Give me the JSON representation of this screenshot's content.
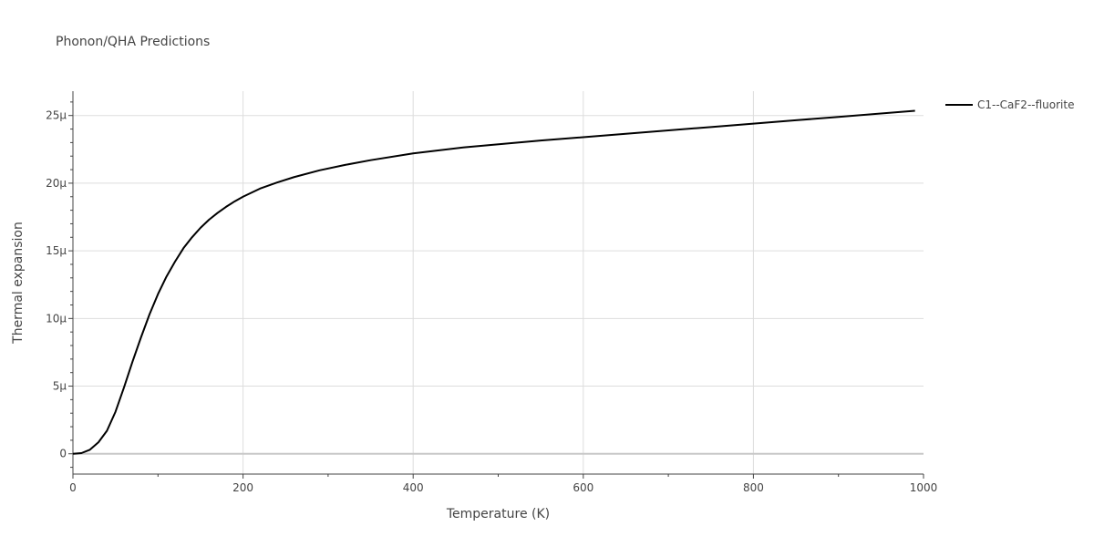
{
  "chart_data": {
    "type": "line",
    "title": "Phonon/QHA Predictions",
    "xlabel": "Temperature (K)",
    "ylabel": "Thermal expansion",
    "xlim": [
      0,
      1000
    ],
    "ylim": [
      -1.5e-06,
      2.68e-05
    ],
    "x_ticks": [
      {
        "value": 0,
        "label": "0"
      },
      {
        "value": 200,
        "label": "200"
      },
      {
        "value": 400,
        "label": "400"
      },
      {
        "value": 600,
        "label": "600"
      },
      {
        "value": 800,
        "label": "800"
      },
      {
        "value": 1000,
        "label": "1000"
      }
    ],
    "y_ticks": [
      {
        "value": 0,
        "label": "0"
      },
      {
        "value": 5e-06,
        "label": "5μ"
      },
      {
        "value": 1e-05,
        "label": "10μ"
      },
      {
        "value": 1.5e-05,
        "label": "15μ"
      },
      {
        "value": 2e-05,
        "label": "20μ"
      },
      {
        "value": 2.5e-05,
        "label": "25μ"
      }
    ],
    "grid": true,
    "legend_position": "top-right",
    "series": [
      {
        "name": "C1--CaF2--fluorite",
        "color": "#000000",
        "x": [
          0,
          10,
          20,
          30,
          40,
          50,
          60,
          70,
          80,
          90,
          100,
          110,
          120,
          130,
          140,
          150,
          160,
          170,
          180,
          190,
          200,
          220,
          240,
          260,
          290,
          320,
          350,
          400,
          460,
          550,
          650,
          750,
          850,
          900,
          990
        ],
        "y": [
          0,
          5e-08,
          3e-07,
          8.5e-07,
          1.7e-06,
          3.1e-06,
          4.9e-06,
          6.8e-06,
          8.6e-06,
          1.03e-05,
          1.18e-05,
          1.31e-05,
          1.42e-05,
          1.52e-05,
          1.6e-05,
          1.67e-05,
          1.73e-05,
          1.78e-05,
          1.825e-05,
          1.865e-05,
          1.9e-05,
          1.96e-05,
          2.005e-05,
          2.045e-05,
          2.095e-05,
          2.135e-05,
          2.17e-05,
          2.22e-05,
          2.265e-05,
          2.315e-05,
          2.365e-05,
          2.415e-05,
          2.465e-05,
          2.49e-05,
          2.535e-05
        ]
      }
    ]
  }
}
